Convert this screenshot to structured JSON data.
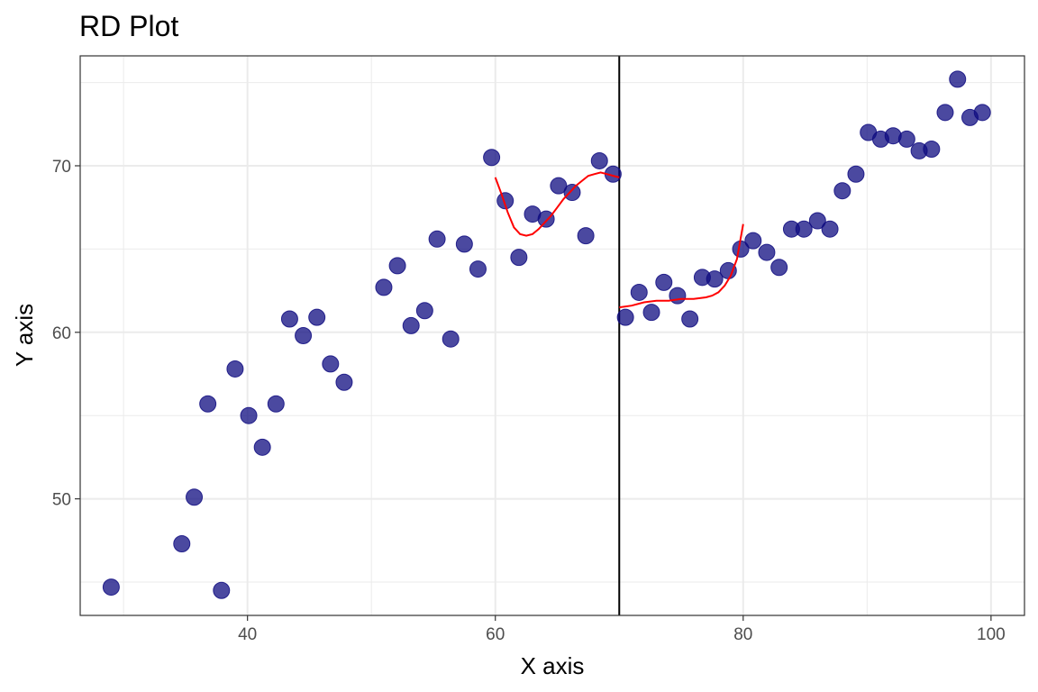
{
  "chart_data": {
    "type": "scatter",
    "title": "RD Plot",
    "xlabel": "X axis",
    "ylabel": "Y axis",
    "xlim": [
      26.5,
      102.7
    ],
    "ylim": [
      43.0,
      76.6
    ],
    "xticks": [
      40,
      60,
      80,
      100
    ],
    "yticks": [
      50,
      60,
      70
    ],
    "x_minor": [
      30,
      50,
      70,
      90
    ],
    "y_minor": [
      45,
      55,
      65,
      75
    ],
    "grid": true,
    "cutoff": 70,
    "colors": {
      "points": "#0f0c80",
      "fit": "#ff0000",
      "cutoff": "#000000",
      "grid": "#ebebeb"
    },
    "points": [
      [
        29.0,
        44.7
      ],
      [
        34.7,
        47.3
      ],
      [
        35.7,
        50.1
      ],
      [
        36.8,
        55.7
      ],
      [
        37.9,
        44.5
      ],
      [
        39.0,
        57.8
      ],
      [
        40.1,
        55.0
      ],
      [
        41.2,
        53.1
      ],
      [
        42.3,
        55.7
      ],
      [
        43.4,
        60.8
      ],
      [
        44.5,
        59.8
      ],
      [
        45.6,
        60.9
      ],
      [
        46.7,
        58.1
      ],
      [
        47.8,
        57.0
      ],
      [
        51.0,
        62.7
      ],
      [
        52.1,
        64.0
      ],
      [
        53.2,
        60.4
      ],
      [
        54.3,
        61.3
      ],
      [
        55.3,
        65.6
      ],
      [
        56.4,
        59.6
      ],
      [
        57.5,
        65.3
      ],
      [
        58.6,
        63.8
      ],
      [
        59.7,
        70.5
      ],
      [
        60.8,
        67.9
      ],
      [
        61.9,
        64.5
      ],
      [
        63.0,
        67.1
      ],
      [
        64.1,
        66.8
      ],
      [
        65.1,
        68.8
      ],
      [
        66.2,
        68.4
      ],
      [
        67.3,
        65.8
      ],
      [
        68.4,
        70.3
      ],
      [
        69.5,
        69.5
      ],
      [
        70.5,
        60.9
      ],
      [
        71.6,
        62.4
      ],
      [
        72.6,
        61.2
      ],
      [
        73.6,
        63.0
      ],
      [
        74.7,
        62.2
      ],
      [
        75.7,
        60.8
      ],
      [
        76.7,
        63.3
      ],
      [
        77.7,
        63.2
      ],
      [
        78.8,
        63.7
      ],
      [
        79.8,
        65.0
      ],
      [
        80.8,
        65.5
      ],
      [
        81.9,
        64.8
      ],
      [
        82.9,
        63.9
      ],
      [
        83.9,
        66.2
      ],
      [
        84.9,
        66.2
      ],
      [
        86.0,
        66.7
      ],
      [
        87.0,
        66.2
      ],
      [
        88.0,
        68.5
      ],
      [
        89.1,
        69.5
      ],
      [
        90.1,
        72.0
      ],
      [
        91.1,
        71.6
      ],
      [
        92.1,
        71.8
      ],
      [
        93.2,
        71.6
      ],
      [
        94.2,
        70.9
      ],
      [
        95.2,
        71.0
      ],
      [
        96.3,
        73.2
      ],
      [
        97.3,
        75.2
      ],
      [
        98.3,
        72.9
      ],
      [
        99.3,
        73.2
      ]
    ],
    "fit_left": [
      [
        60.0,
        69.3
      ],
      [
        60.5,
        68.3
      ],
      [
        61.0,
        67.2
      ],
      [
        61.5,
        66.3
      ],
      [
        62.0,
        65.9
      ],
      [
        62.5,
        65.8
      ],
      [
        63.0,
        65.9
      ],
      [
        63.5,
        66.2
      ],
      [
        64.0,
        66.6
      ],
      [
        64.5,
        67.0
      ],
      [
        65.0,
        67.5
      ],
      [
        65.5,
        68.0
      ],
      [
        66.0,
        68.4
      ],
      [
        66.5,
        68.8
      ],
      [
        67.0,
        69.1
      ],
      [
        67.5,
        69.4
      ],
      [
        68.0,
        69.5
      ],
      [
        68.5,
        69.6
      ],
      [
        69.0,
        69.5
      ],
      [
        69.5,
        69.4
      ],
      [
        70.0,
        69.3
      ]
    ],
    "fit_right": [
      [
        70.0,
        61.5
      ],
      [
        71.0,
        61.6
      ],
      [
        72.0,
        61.8
      ],
      [
        73.0,
        61.9
      ],
      [
        74.0,
        61.9
      ],
      [
        75.0,
        62.0
      ],
      [
        76.0,
        62.0
      ],
      [
        77.0,
        62.1
      ],
      [
        77.5,
        62.2
      ],
      [
        78.0,
        62.4
      ],
      [
        78.5,
        62.8
      ],
      [
        79.0,
        63.4
      ],
      [
        79.5,
        64.4
      ],
      [
        80.0,
        66.5
      ]
    ]
  }
}
